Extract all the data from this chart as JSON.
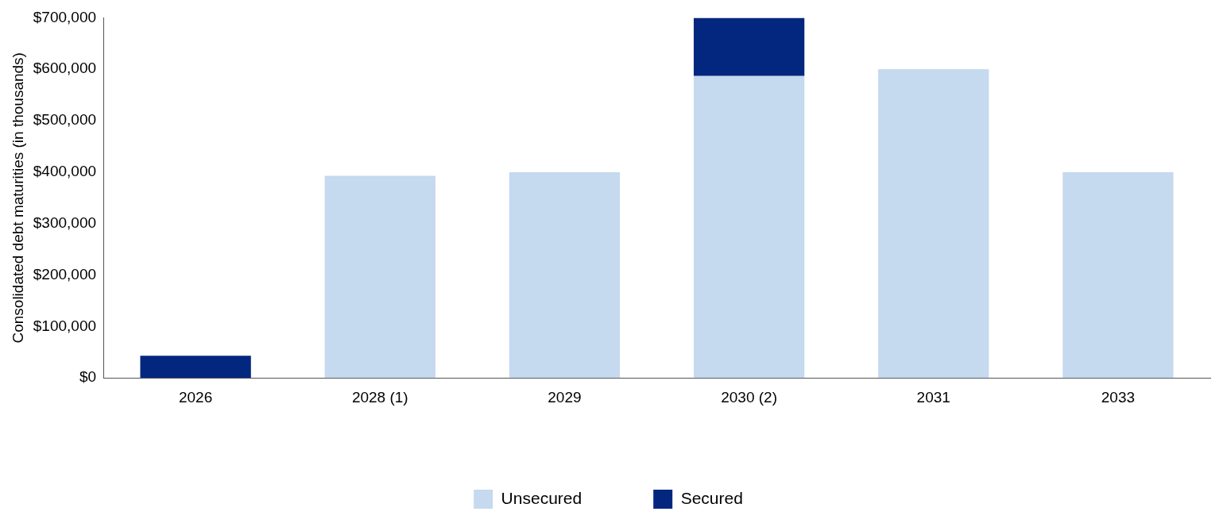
{
  "chart_data": {
    "type": "bar",
    "ylabel": "Consolidated debt maturities (in thousands)",
    "categories": [
      "2026",
      "2028 (1)",
      "2029",
      "2030 (2)",
      "2031",
      "2033"
    ],
    "series": [
      {
        "name": "Unsecured",
        "color": "#c5d9ef",
        "values": [
          null,
          393000,
          400000,
          587000,
          600000,
          400000
        ]
      },
      {
        "name": "Secured",
        "color": "#03277e",
        "values": [
          43000,
          null,
          null,
          113000,
          null,
          null
        ]
      }
    ],
    "stacked": true,
    "ylim": [
      0,
      700000
    ],
    "yticks": [
      {
        "value": 0,
        "label": "$0"
      },
      {
        "value": 100000,
        "label": "$100,000"
      },
      {
        "value": 200000,
        "label": "$200,000"
      },
      {
        "value": 300000,
        "label": "$300,000"
      },
      {
        "value": 400000,
        "label": "$400,000"
      },
      {
        "value": 500000,
        "label": "$500,000"
      },
      {
        "value": 600000,
        "label": "$600,000"
      },
      {
        "value": 700000,
        "label": "$700,000"
      }
    ],
    "grid": false,
    "legend": "bottom"
  }
}
